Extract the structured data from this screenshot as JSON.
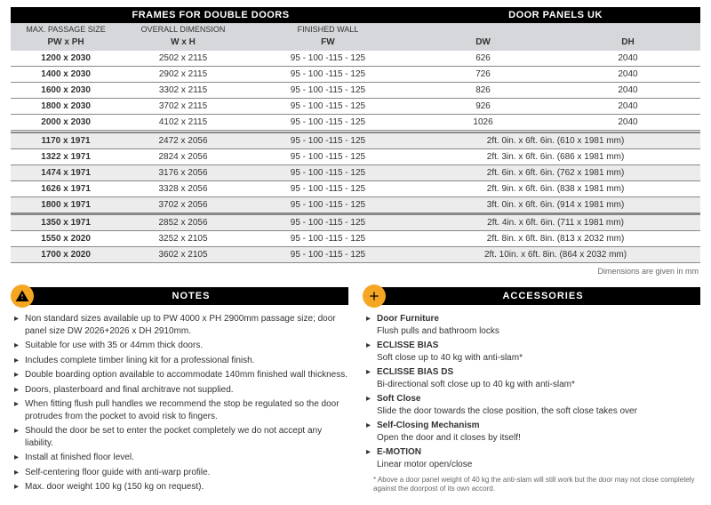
{
  "table": {
    "header_left": "FRAMES FOR DOUBLE DOORS",
    "header_right": "DOOR PANELS UK",
    "sub1": [
      "MAX. PASSAGE SIZE",
      "OVERALL DIMENSION",
      "FINISHED WALL",
      "",
      ""
    ],
    "sub2": [
      "PW x PH",
      "W x H",
      "FW",
      "DW",
      "DH"
    ],
    "groups": [
      [
        [
          "1200 x 2030",
          "2502 x 2115",
          "95 - 100 -115 - 125",
          "626",
          "2040"
        ],
        [
          "1400 x 2030",
          "2902 x 2115",
          "95 - 100 -115 - 125",
          "726",
          "2040"
        ],
        [
          "1600 x 2030",
          "3302 x 2115",
          "95 - 100 -115 - 125",
          "826",
          "2040"
        ],
        [
          "1800 x 2030",
          "3702 x 2115",
          "95 - 100 -115 - 125",
          "926",
          "2040"
        ],
        [
          "2000 x 2030",
          "4102 x 2115",
          "95 - 100 -115 - 125",
          "1026",
          "2040"
        ]
      ],
      [
        [
          "1170 x 1971",
          "2472 x 2056",
          "95 - 100 -115 - 125",
          "2ft. 0in. x 6ft. 6in. (610 x 1981 mm)"
        ],
        [
          "1322 x 1971",
          "2824 x 2056",
          "95 - 100 -115 - 125",
          "2ft. 3in. x 6ft. 6in. (686 x 1981 mm)"
        ],
        [
          "1474 x 1971",
          "3176 x 2056",
          "95 - 100 -115 - 125",
          "2ft. 6in. x 6ft. 6in. (762 x 1981 mm)"
        ],
        [
          "1626 x 1971",
          "3328 x 2056",
          "95 - 100 -115 - 125",
          "2ft. 9in. x 6ft. 6in. (838 x 1981 mm)"
        ],
        [
          "1800 x 1971",
          "3702 x 2056",
          "95 - 100 -115 - 125",
          "3ft. 0in. x 6ft. 6in. (914 x 1981 mm)"
        ]
      ],
      [
        [
          "1350 x 1971",
          "2852 x 2056",
          "95 - 100 -115 - 125",
          "2ft. 4in. x 6ft. 6in. (711 x 1981 mm)"
        ],
        [
          "1550 x 2020",
          "3252 x 2105",
          "95 - 100 -115 - 125",
          "2ft. 8in. x 6ft. 8in. (813 x 2032 mm)"
        ],
        [
          "1700 x 2020",
          "3602 x 2105",
          "95 - 100 -115 - 125",
          "2ft. 10in. x 6ft. 8in. (864 x 2032 mm)"
        ]
      ]
    ],
    "footnote": "Dimensions are given in mm"
  },
  "notes": {
    "title": "NOTES",
    "items": [
      "Non standard sizes available up to PW 4000 x PH 2900mm passage size; door panel size DW 2026+2026 x DH 2910mm.",
      "Suitable for use with 35 or 44mm thick doors.",
      "Includes complete timber lining kit for a professional finish.",
      "Double boarding option available to accommodate 140mm finished wall thickness.",
      "Doors, plasterboard and final architrave not supplied.",
      "When fitting flush pull handles we recommend the stop be regulated so the door protrudes from the pocket to avoid risk to fingers.",
      "Should the door be set to enter the pocket completely we do not accept any liability.",
      "Install at finished floor level.",
      "Self-centering floor guide with anti-warp profile.",
      "Max. door weight 100 kg (150 kg on request)."
    ]
  },
  "acc": {
    "title": "ACCESSORIES",
    "items": [
      {
        "h": "Door Furniture",
        "t": "Flush pulls and bathroom locks"
      },
      {
        "h": "ECLISSE BIAS",
        "t": "Soft close up to 40 kg with anti-slam*"
      },
      {
        "h": "ECLISSE BIAS DS",
        "t": "Bi-directional soft close up to 40 kg with anti-slam*"
      },
      {
        "h": "Soft Close",
        "t": "Slide the door towards the close position, the soft close takes over"
      },
      {
        "h": "Self-Closing Mechanism",
        "t": "Open the door and it closes by itself!"
      },
      {
        "h": "E-MOTION",
        "t": "Linear motor open/close"
      }
    ],
    "footnote": "* Above a door panel weight of 40 kg the anti-slam will still work but the door may not close completely against the doorpost of its own accord."
  }
}
